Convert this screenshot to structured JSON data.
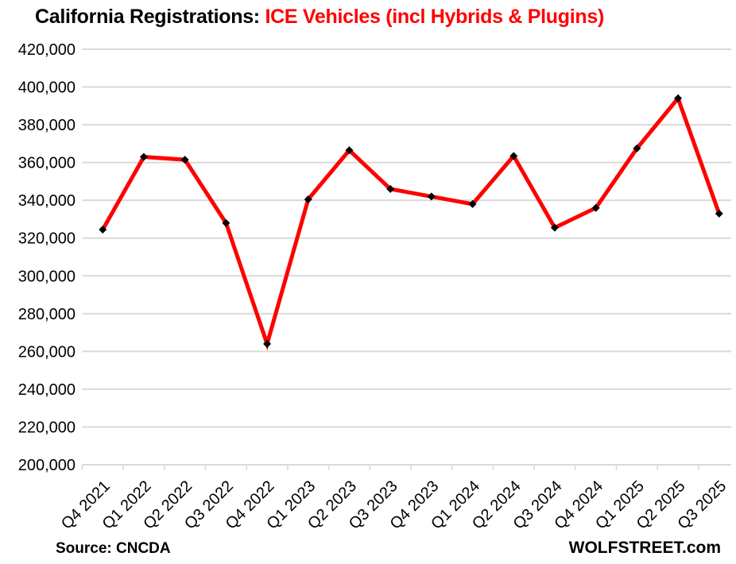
{
  "title": {
    "prefix": "California Registrations: ",
    "highlight": "ICE Vehicles (incl Hybrids & Plugins)"
  },
  "footer": {
    "source": "Source: CNCDA",
    "brand": "WOLFSTREET.com"
  },
  "chart_data": {
    "type": "line",
    "title": "California Registrations: ICE Vehicles (incl Hybrids & Plugins)",
    "series_name": "ICE vehicle registrations (incl hybrids & plugins)",
    "categories": [
      "Q4 2021",
      "Q1 2022",
      "Q2 2022",
      "Q3 2022",
      "Q4 2022",
      "Q1 2023",
      "Q2 2023",
      "Q3 2023",
      "Q4 2023",
      "Q1 2024",
      "Q2 2024",
      "Q3 2024",
      "Q4 2024",
      "Q1 2025",
      "Q2 2025",
      "Q3 2025"
    ],
    "values": [
      324500,
      363000,
      361500,
      328000,
      264000,
      340500,
      366500,
      346000,
      342000,
      338000,
      363500,
      325500,
      336000,
      367500,
      394000,
      333000
    ],
    "xlabel": "",
    "ylabel": "",
    "ylim": [
      200000,
      420000
    ],
    "ytick_step": 20000,
    "ytick_labels": [
      "200,000",
      "220,000",
      "240,000",
      "260,000",
      "280,000",
      "300,000",
      "320,000",
      "340,000",
      "360,000",
      "380,000",
      "400,000",
      "420,000"
    ],
    "grid": true,
    "legend_position": "none",
    "marker": "diamond",
    "colors": {
      "line": "#ff0000",
      "marker": "#000000",
      "grid": "#d9d9d9",
      "text": "#000000",
      "title_highlight": "#ff0000"
    }
  }
}
